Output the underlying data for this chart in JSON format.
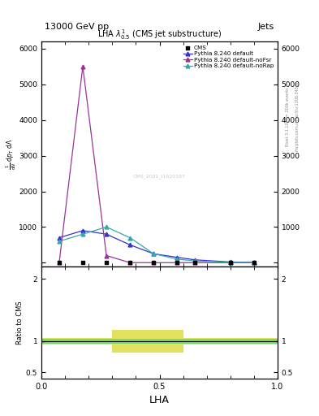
{
  "title_top": "13000 GeV pp",
  "title_right": "Jets",
  "plot_title": "LHA $\\lambda^{1}_{0.5}$ (CMS jet substructure)",
  "xlabel": "LHA",
  "ylabel_ratio": "Ratio to CMS",
  "watermark": "CMS_2021_I1920187",
  "right_label": "mcplots.cern.ch [arXiv:1306.3436]",
  "right_label2": "Rivet 3.1.10, >= 200k events",
  "blue_x": [
    0.075,
    0.175,
    0.275,
    0.375,
    0.475,
    0.575,
    0.65,
    0.8,
    0.9
  ],
  "blue_y": [
    700,
    900,
    800,
    500,
    250,
    150,
    80,
    20,
    5
  ],
  "purple_x": [
    0.075,
    0.175,
    0.275,
    0.375,
    0.475,
    0.575,
    0.65,
    0.8,
    0.9
  ],
  "purple_y": [
    0,
    5500,
    200,
    0,
    0,
    0,
    0,
    0,
    0
  ],
  "cyan_x": [
    0.075,
    0.175,
    0.275,
    0.375,
    0.475,
    0.575,
    0.65,
    0.8,
    0.9
  ],
  "cyan_y": [
    600,
    800,
    1000,
    700,
    250,
    100,
    50,
    10,
    2
  ],
  "cms_x": [
    0.075,
    0.175,
    0.275,
    0.375,
    0.475,
    0.575,
    0.65,
    0.8,
    0.9
  ],
  "cms_y": [
    5,
    5,
    5,
    5,
    5,
    5,
    5,
    5,
    5
  ],
  "ylim_main": [
    -100,
    6200
  ],
  "xlim": [
    0,
    1
  ],
  "ratio_ylim": [
    0.4,
    2.2
  ],
  "ratio_yticks": [
    0.5,
    1.0,
    2.0
  ],
  "green_band_x": [
    0.0,
    0.1,
    0.2,
    0.3,
    0.4,
    0.5,
    0.6,
    0.65,
    0.8,
    1.0
  ],
  "green_band_lo": [
    0.96,
    0.96,
    0.96,
    0.96,
    0.96,
    0.96,
    0.96,
    0.96,
    0.96,
    0.96
  ],
  "green_band_hi": [
    1.04,
    1.04,
    1.04,
    1.04,
    1.04,
    1.04,
    1.04,
    1.04,
    1.04,
    1.04
  ],
  "yellow_band_x": [
    0.0,
    0.1,
    0.2,
    0.3,
    0.35,
    0.4,
    0.5,
    0.6,
    0.65,
    0.8,
    1.0
  ],
  "yellow_band_lo": [
    0.95,
    0.95,
    0.95,
    0.95,
    0.82,
    0.82,
    0.82,
    0.82,
    0.95,
    0.95,
    0.95
  ],
  "yellow_band_hi": [
    1.05,
    1.05,
    1.05,
    1.05,
    1.18,
    1.18,
    1.18,
    1.18,
    1.05,
    1.05,
    1.05
  ],
  "blue_color": "#3333cc",
  "purple_color": "#993399",
  "cyan_color": "#33aaaa",
  "cms_color": "black",
  "green_color": "#66dd66",
  "yellow_color": "#dddd44",
  "legend_labels": [
    "CMS",
    "Pythia 8.240 default",
    "Pythia 8.240 default-noFsr",
    "Pythia 8.240 default-noRap"
  ],
  "yticks_main": [
    0,
    1000,
    2000,
    3000,
    4000,
    5000,
    6000
  ]
}
